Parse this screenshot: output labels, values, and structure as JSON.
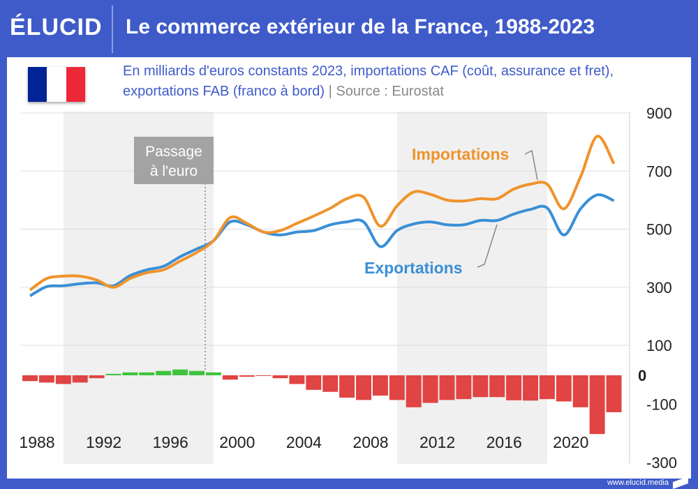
{
  "header": {
    "logo": "ÉLUCID",
    "title": "Le commerce extérieur de la France, 1988-2023"
  },
  "subtitle": {
    "main": "En milliards d'euros constants 2023, importations CAF (coût, assurance et fret), exportations FAB (franco à bord)",
    "separator": "|",
    "source": "Source : Eurostat"
  },
  "footer": {
    "url": "www.elucid.media"
  },
  "colors": {
    "imports": "#f0932b",
    "exports": "#3a8fd6",
    "deficit": "#e04444",
    "surplus": "#3ec43e",
    "shade": "#f0f0f0",
    "flag_blue": "#002395",
    "flag_white": "#ffffff",
    "flag_red": "#ed2939"
  },
  "chart_data": {
    "type": "line",
    "title": "Le commerce extérieur de la France, 1988-2023",
    "x": [
      1988,
      1989,
      1990,
      1991,
      1992,
      1993,
      1994,
      1995,
      1996,
      1997,
      1998,
      1999,
      2000,
      2001,
      2002,
      2003,
      2004,
      2005,
      2006,
      2007,
      2008,
      2009,
      2010,
      2011,
      2012,
      2013,
      2014,
      2015,
      2016,
      2017,
      2018,
      2019,
      2020,
      2021,
      2022,
      2023
    ],
    "series": [
      {
        "name": "Importations",
        "values": [
          290,
          330,
          338,
          338,
          325,
          300,
          330,
          350,
          360,
          390,
          420,
          460,
          540,
          520,
          490,
          495,
          520,
          545,
          572,
          605,
          610,
          510,
          580,
          628,
          620,
          600,
          597,
          605,
          605,
          638,
          655,
          655,
          570,
          680,
          820,
          725
        ]
      },
      {
        "name": "Exportations",
        "values": [
          270,
          302,
          305,
          312,
          315,
          305,
          340,
          360,
          372,
          405,
          432,
          460,
          525,
          515,
          490,
          480,
          490,
          495,
          515,
          525,
          525,
          440,
          495,
          518,
          525,
          515,
          515,
          530,
          530,
          552,
          568,
          573,
          480,
          570,
          618,
          598
        ]
      },
      {
        "name": "Solde",
        "values": [
          -20,
          -25,
          -30,
          -25,
          -10,
          5,
          10,
          10,
          15,
          20,
          15,
          10,
          -15,
          -5,
          -1,
          -10,
          -30,
          -50,
          -57,
          -77,
          -85,
          -70,
          -85,
          -110,
          -95,
          -85,
          -82,
          -75,
          -75,
          -86,
          -87,
          -82,
          -90,
          -110,
          -202,
          -127
        ]
      }
    ],
    "xticks": [
      "1988",
      "1992",
      "1996",
      "2000",
      "2004",
      "2008",
      "2012",
      "2016",
      "2020"
    ],
    "yticks": [
      "900",
      "700",
      "500",
      "300",
      "100",
      "0",
      "-100",
      "-300"
    ],
    "ylim_upper": [
      100,
      900
    ],
    "ylim_lower": [
      -300,
      0
    ],
    "shaded_periods": [
      [
        1990,
        1999
      ],
      [
        2010,
        2019
      ]
    ],
    "labels": {
      "imports": "Importations",
      "exports": "Exportations",
      "euro": [
        "Passage",
        "à l'euro"
      ]
    },
    "euro_marker_year": 1999
  }
}
